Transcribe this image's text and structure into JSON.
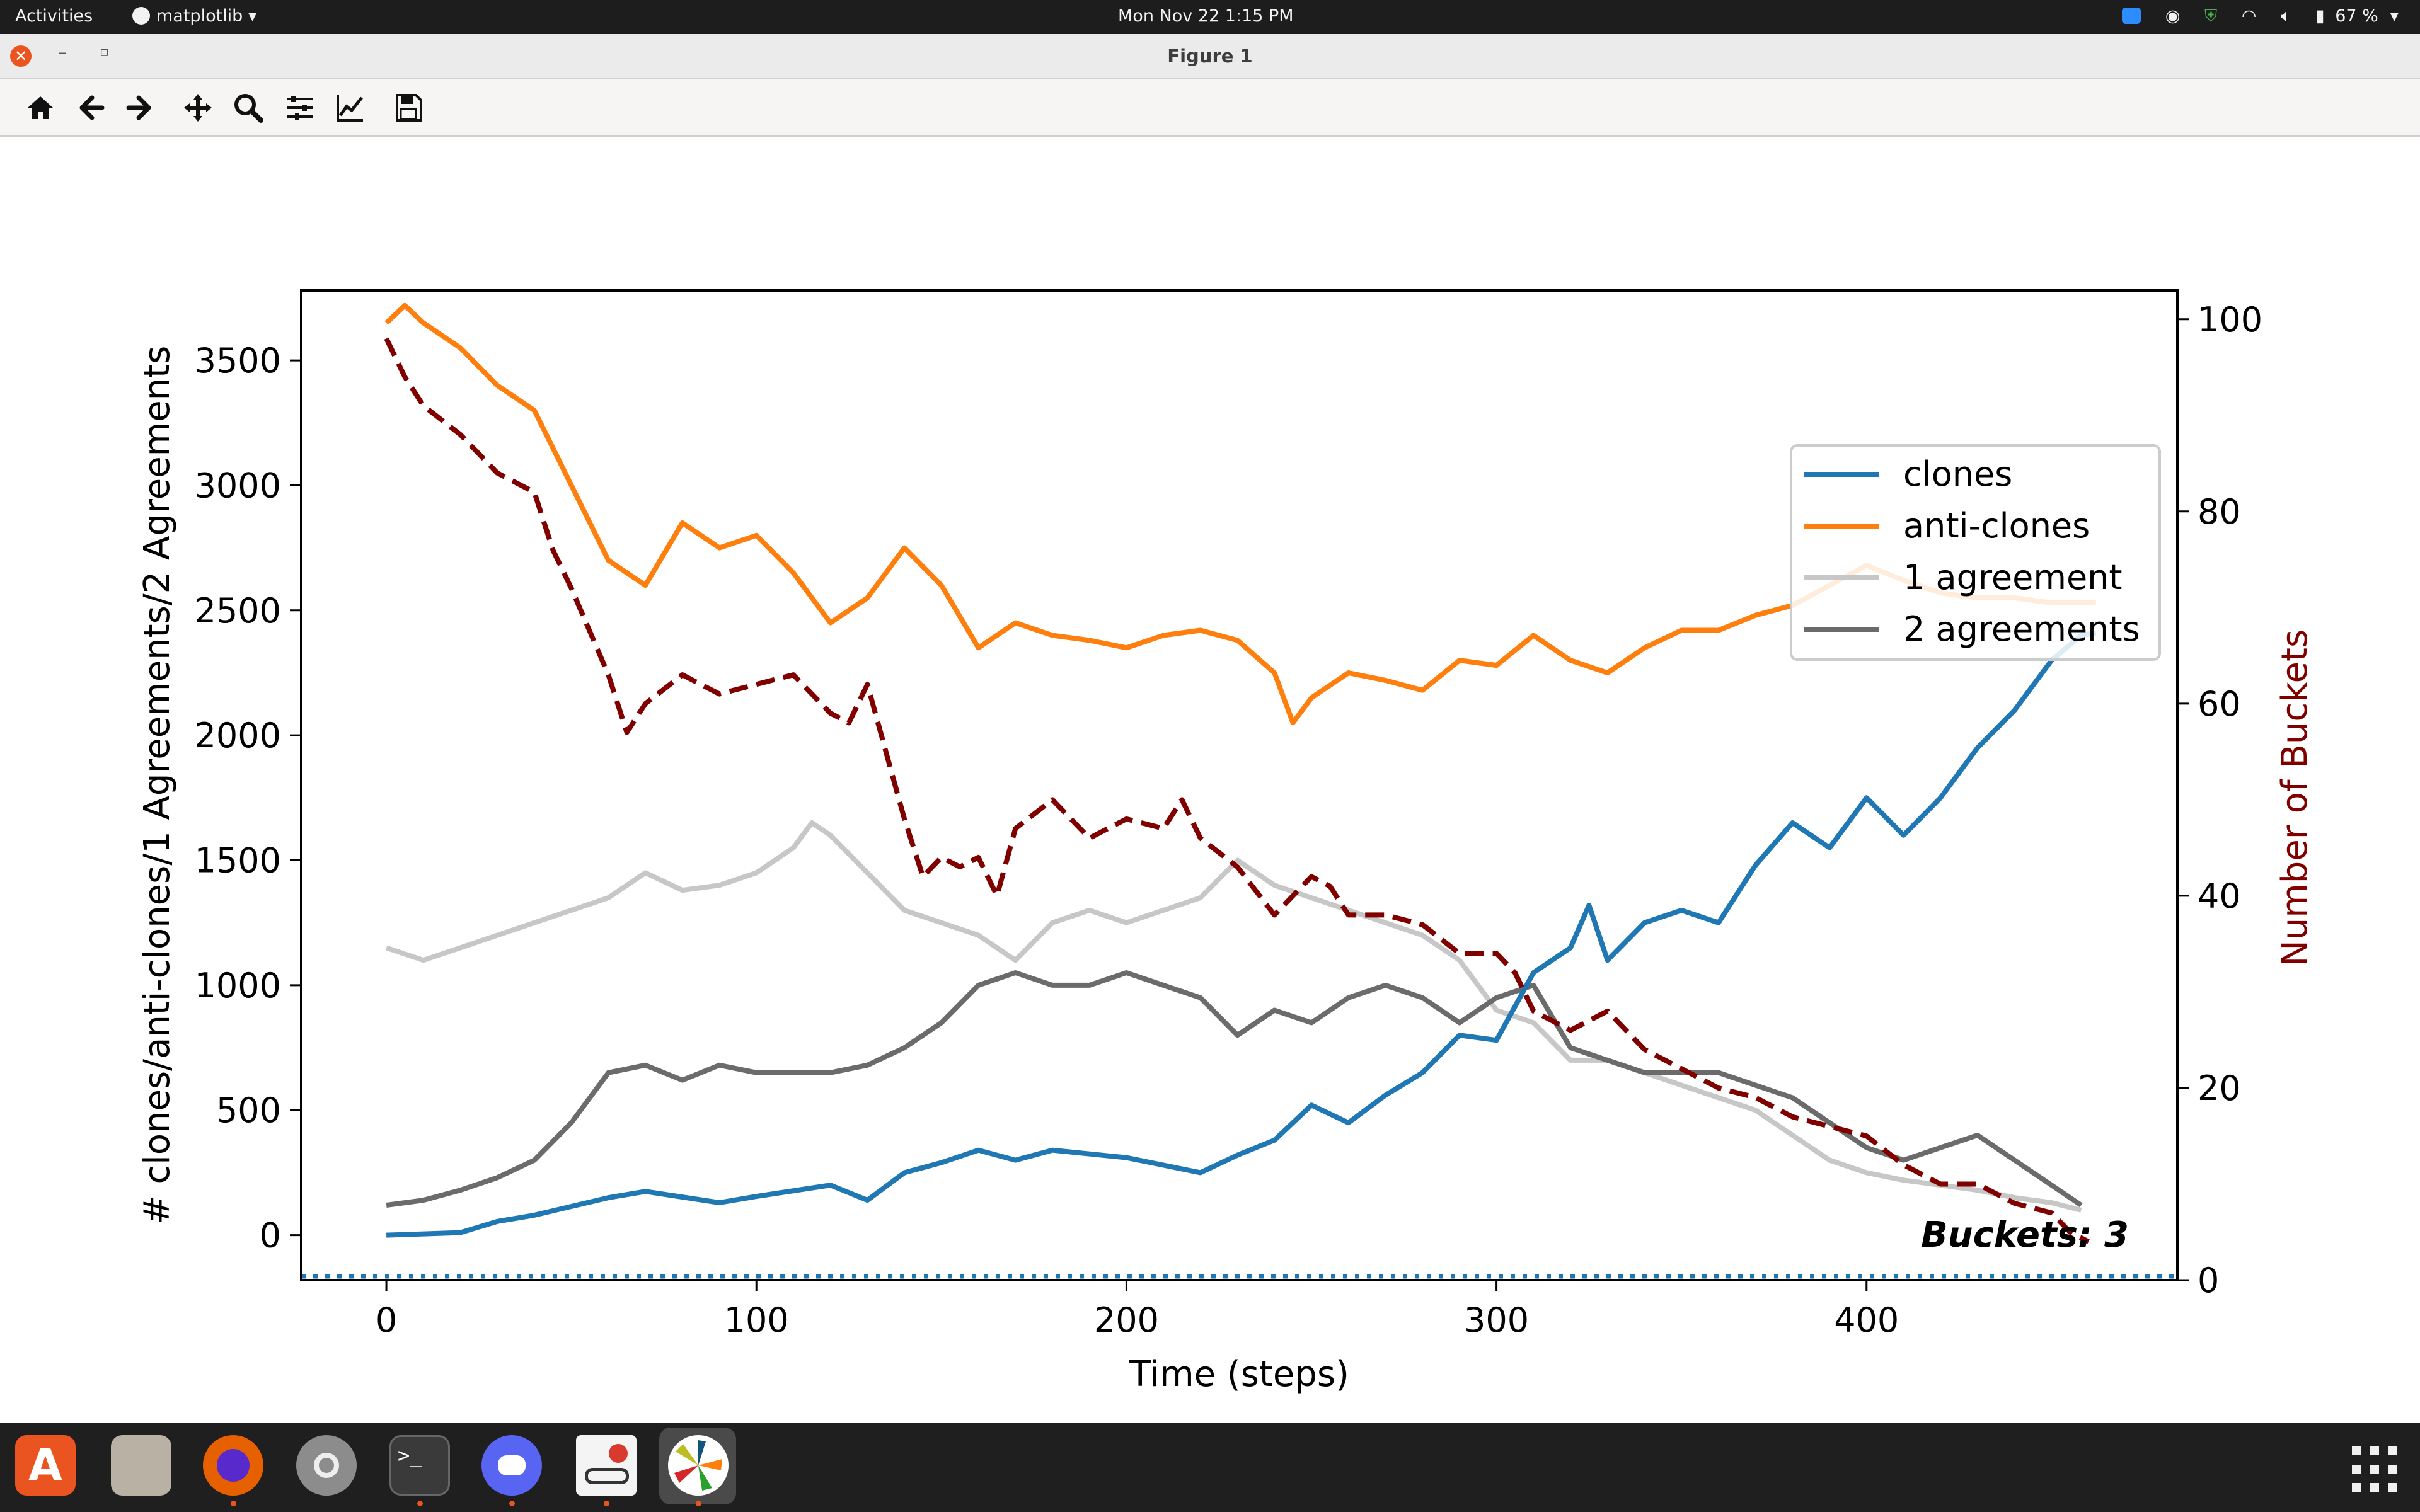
{
  "topbar": {
    "activities": "Activities",
    "app_name": "matplotlib",
    "clock": "Mon Nov 22   1:15 PM",
    "battery": "67 %"
  },
  "window": {
    "title": "Figure 1"
  },
  "toolbar": {
    "tools": [
      "home-icon",
      "back-arrow-icon",
      "forward-arrow-icon",
      "pan-icon",
      "zoom-icon",
      "subplots-icon",
      "edit-axes-icon",
      "save-icon"
    ]
  },
  "colors": {
    "clones": "#1f77b4",
    "anti_clones": "#ff7f0e",
    "one_agreement": "#c7c7c7",
    "two_agreements": "#6b6b6b",
    "buckets": "#800000",
    "accent": "#e95420"
  },
  "chart_data": {
    "type": "line",
    "xlabel": "Time (steps)",
    "ylabel": "# clones/anti-clones/1 Agreements/2 Agreements",
    "y2label": "Number of Buckets",
    "xlim": [
      -23,
      484
    ],
    "ylim": [
      -180,
      3780
    ],
    "y2lim": [
      0,
      103
    ],
    "xticks": [
      0,
      100,
      200,
      300,
      400
    ],
    "yticks": [
      0,
      500,
      1000,
      1500,
      2000,
      2500,
      3000,
      3500
    ],
    "y2ticks": [
      0,
      20,
      40,
      60,
      80,
      100
    ],
    "legend_position": "top-right",
    "annotation": "Buckets: 3",
    "hline": {
      "y2": 0,
      "style": "dotted",
      "color": "#1f77b4"
    },
    "series": [
      {
        "name": "clones",
        "axis": "left",
        "x": [
          0,
          20,
          30,
          40,
          60,
          70,
          90,
          100,
          120,
          130,
          140,
          150,
          160,
          170,
          180,
          200,
          210,
          220,
          230,
          240,
          250,
          260,
          270,
          280,
          290,
          300,
          310,
          320,
          325,
          330,
          340,
          350,
          360,
          370,
          380,
          390,
          400,
          410,
          420,
          430,
          440,
          450,
          458,
          462
        ],
        "y": [
          0,
          10,
          55,
          80,
          150,
          175,
          130,
          155,
          200,
          140,
          250,
          290,
          340,
          300,
          340,
          310,
          280,
          250,
          320,
          380,
          520,
          450,
          560,
          650,
          800,
          780,
          1050,
          1150,
          1320,
          1100,
          1250,
          1300,
          1250,
          1480,
          1650,
          1550,
          1750,
          1600,
          1750,
          1950,
          2100,
          2300,
          2400,
          2410
        ]
      },
      {
        "name": "anti-clones",
        "axis": "left",
        "x": [
          0,
          5,
          10,
          20,
          30,
          40,
          50,
          60,
          70,
          80,
          90,
          100,
          110,
          120,
          130,
          140,
          150,
          160,
          170,
          180,
          190,
          200,
          210,
          220,
          230,
          240,
          245,
          250,
          260,
          270,
          280,
          290,
          300,
          310,
          320,
          330,
          340,
          350,
          360,
          370,
          380,
          390,
          400,
          410,
          420,
          430,
          440,
          450,
          462
        ],
        "y": [
          3650,
          3720,
          3650,
          3550,
          3400,
          3300,
          3000,
          2700,
          2600,
          2850,
          2750,
          2800,
          2650,
          2450,
          2550,
          2750,
          2600,
          2350,
          2450,
          2400,
          2380,
          2350,
          2400,
          2420,
          2380,
          2250,
          2050,
          2150,
          2250,
          2220,
          2180,
          2300,
          2280,
          2400,
          2300,
          2250,
          2350,
          2420,
          2420,
          2480,
          2520,
          2600,
          2680,
          2620,
          2570,
          2550,
          2550,
          2530,
          2530
        ]
      },
      {
        "name": "1 agreement",
        "axis": "left",
        "x": [
          0,
          10,
          20,
          30,
          40,
          50,
          60,
          70,
          80,
          90,
          100,
          110,
          115,
          120,
          130,
          140,
          150,
          160,
          165,
          170,
          180,
          190,
          200,
          210,
          220,
          230,
          240,
          250,
          260,
          270,
          280,
          290,
          300,
          310,
          320,
          330,
          340,
          350,
          360,
          370,
          380,
          390,
          400,
          410,
          420,
          430,
          440,
          450,
          458
        ],
        "y": [
          1150,
          1100,
          1150,
          1200,
          1250,
          1300,
          1350,
          1450,
          1380,
          1400,
          1450,
          1550,
          1650,
          1600,
          1450,
          1300,
          1250,
          1200,
          1150,
          1100,
          1250,
          1300,
          1250,
          1300,
          1350,
          1500,
          1400,
          1350,
          1300,
          1250,
          1200,
          1100,
          900,
          850,
          700,
          700,
          650,
          600,
          550,
          500,
          400,
          300,
          250,
          220,
          200,
          180,
          150,
          130,
          100
        ]
      },
      {
        "name": "2 agreements",
        "axis": "left",
        "x": [
          0,
          10,
          20,
          30,
          40,
          50,
          60,
          70,
          80,
          90,
          100,
          110,
          120,
          130,
          140,
          150,
          160,
          170,
          180,
          190,
          200,
          210,
          220,
          230,
          240,
          250,
          260,
          270,
          280,
          290,
          300,
          310,
          320,
          330,
          340,
          350,
          360,
          370,
          380,
          390,
          400,
          410,
          420,
          430,
          440,
          450,
          458
        ],
        "y": [
          120,
          140,
          180,
          230,
          300,
          450,
          650,
          680,
          620,
          680,
          650,
          650,
          650,
          680,
          750,
          850,
          1000,
          1050,
          1000,
          1000,
          1050,
          1000,
          950,
          800,
          900,
          850,
          950,
          1000,
          950,
          850,
          950,
          1000,
          750,
          700,
          650,
          650,
          650,
          600,
          550,
          450,
          350,
          300,
          350,
          400,
          300,
          200,
          120
        ]
      },
      {
        "name": "Number of Buckets",
        "axis": "right",
        "style": "dashed",
        "x": [
          0,
          5,
          10,
          20,
          30,
          40,
          45,
          50,
          60,
          65,
          70,
          80,
          90,
          100,
          110,
          120,
          125,
          130,
          135,
          140,
          145,
          150,
          155,
          160,
          165,
          170,
          180,
          190,
          200,
          210,
          215,
          220,
          230,
          240,
          245,
          250,
          255,
          260,
          270,
          280,
          290,
          300,
          305,
          310,
          320,
          330,
          340,
          350,
          360,
          370,
          380,
          390,
          400,
          410,
          420,
          430,
          440,
          450,
          455,
          460
        ],
        "y": [
          98,
          94,
          91,
          88,
          84,
          82,
          76,
          72,
          63,
          57,
          60,
          63,
          61,
          62,
          63,
          59,
          58,
          62,
          55,
          48,
          42,
          44,
          43,
          44,
          40,
          47,
          50,
          46,
          48,
          47,
          50,
          46,
          43,
          38,
          40,
          42,
          41,
          38,
          38,
          37,
          34,
          34,
          32,
          28,
          26,
          28,
          24,
          22,
          20,
          19,
          17,
          16,
          15,
          12,
          10,
          10,
          8,
          7,
          5,
          4
        ]
      }
    ]
  },
  "dock": {
    "items": [
      "software-center-icon",
      "files-icon",
      "firefox-icon",
      "settings-icon",
      "terminal-icon",
      "discord-icon",
      "document-viewer-icon",
      "matplotlib-icon",
      "app-grid-icon"
    ],
    "terminal_label": ">_"
  }
}
